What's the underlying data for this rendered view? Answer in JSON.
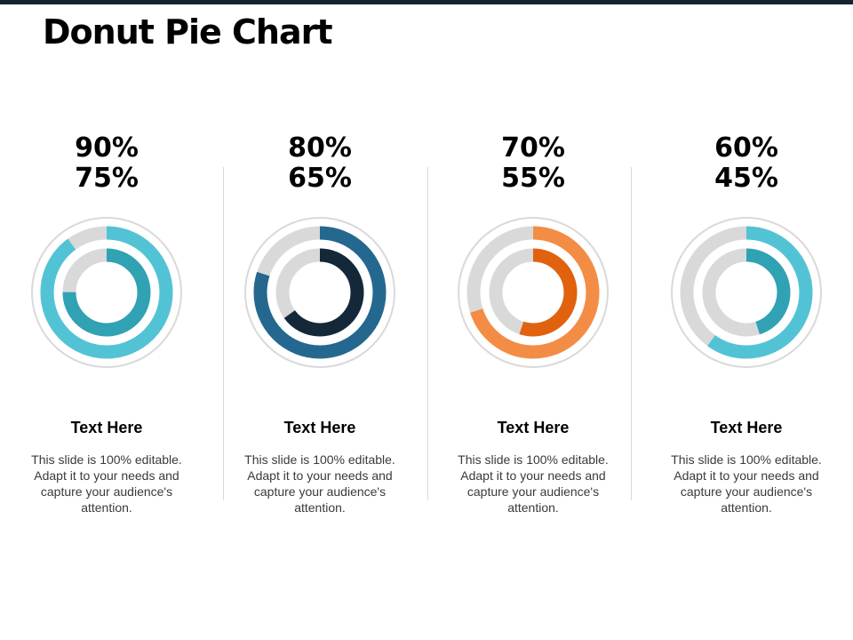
{
  "slide": {
    "title": "Donut Pie Chart"
  },
  "chart_data": [
    {
      "type": "pie",
      "variant": "double-donut",
      "outer_value": 90,
      "inner_value": 75,
      "outer_color": "#52c3d4",
      "inner_color": "#30a2b4",
      "track_color": "#d9d9d9",
      "outer_label": "90%",
      "inner_label": "75%",
      "heading": "Text Here",
      "body": "This slide is 100% editable. Adapt it to your needs and capture your audience's attention."
    },
    {
      "type": "pie",
      "variant": "double-donut",
      "outer_value": 80,
      "inner_value": 65,
      "outer_color": "#24688f",
      "inner_color": "#14283a",
      "track_color": "#d9d9d9",
      "outer_label": "80%",
      "inner_label": "65%",
      "heading": "Text Here",
      "body": "This slide is 100% editable. Adapt it to your needs and capture your audience's attention."
    },
    {
      "type": "pie",
      "variant": "double-donut",
      "outer_value": 70,
      "inner_value": 55,
      "outer_color": "#f38d46",
      "inner_color": "#e1620e",
      "track_color": "#d9d9d9",
      "outer_label": "70%",
      "inner_label": "55%",
      "heading": "Text Here",
      "body": "This slide is 100% editable. Adapt it to your needs and capture your audience's attention."
    },
    {
      "type": "pie",
      "variant": "double-donut",
      "outer_value": 60,
      "inner_value": 45,
      "outer_color": "#52c3d4",
      "inner_color": "#30a2b4",
      "track_color": "#d9d9d9",
      "outer_label": "60%",
      "inner_label": "45%",
      "heading": "Text Here",
      "body": "This slide is 100% editable. Adapt it to your needs and capture your audience's attention."
    }
  ]
}
